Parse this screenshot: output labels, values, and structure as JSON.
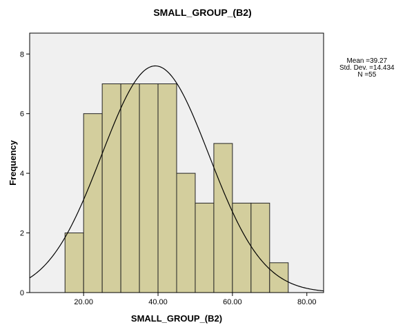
{
  "chart_data": {
    "type": "bar",
    "subtype": "histogram",
    "title": "SMALL_GROUP_(B2)",
    "xlabel": "SMALL_GROUP_(B2)",
    "ylabel": "Frequency",
    "bin_width": 5,
    "bins": [
      {
        "start": 15,
        "end": 20,
        "count": 2
      },
      {
        "start": 20,
        "end": 25,
        "count": 6
      },
      {
        "start": 25,
        "end": 30,
        "count": 7
      },
      {
        "start": 30,
        "end": 35,
        "count": 7
      },
      {
        "start": 35,
        "end": 40,
        "count": 7
      },
      {
        "start": 40,
        "end": 45,
        "count": 7
      },
      {
        "start": 45,
        "end": 50,
        "count": 4
      },
      {
        "start": 50,
        "end": 55,
        "count": 3
      },
      {
        "start": 55,
        "end": 60,
        "count": 5
      },
      {
        "start": 60,
        "end": 65,
        "count": 3
      },
      {
        "start": 65,
        "end": 70,
        "count": 3
      },
      {
        "start": 70,
        "end": 75,
        "count": 1
      }
    ],
    "xlim": [
      5.5,
      84.5
    ],
    "ylim": [
      0,
      8.7
    ],
    "xticks": [
      20,
      40,
      60,
      80
    ],
    "xtick_labels": [
      "20.00",
      "40.00",
      "60.00",
      "80.00"
    ],
    "yticks": [
      0,
      2,
      4,
      6,
      8
    ],
    "ytick_labels": [
      "0",
      "2",
      "4",
      "6",
      "8"
    ],
    "normal_curve": {
      "mean": 39.27,
      "std": 14.434,
      "n": 55
    },
    "stats_lines": [
      "Mean =39.27",
      "Std. Dev. =14.434",
      "N =55"
    ],
    "grid": false,
    "colors": {
      "bar_fill": "#d3ce9d",
      "bar_stroke": "#222222",
      "plot_bg": "#f0f0f0",
      "curve": "#000000"
    }
  }
}
